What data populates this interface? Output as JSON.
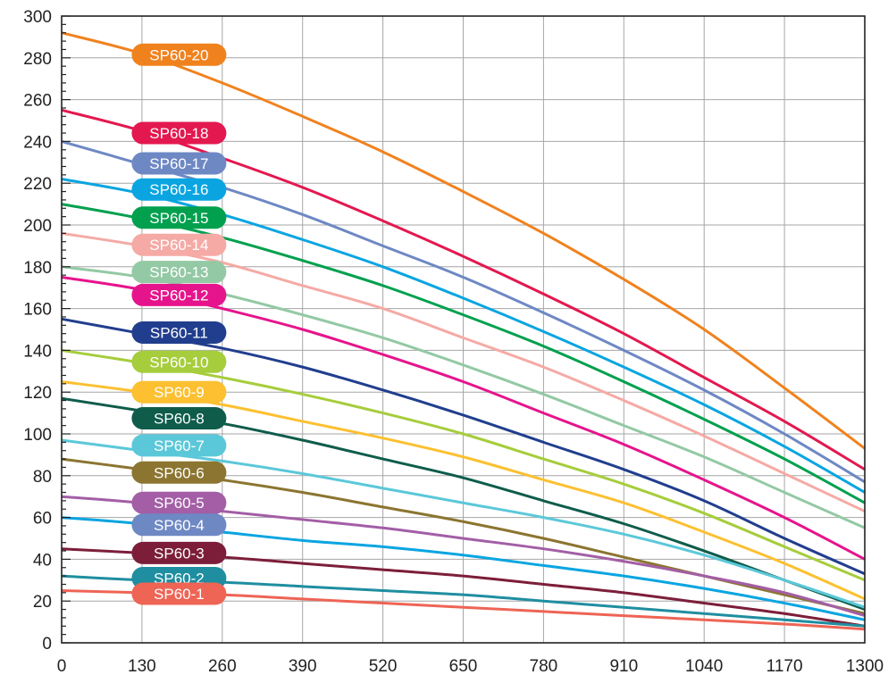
{
  "chart_data": {
    "type": "line",
    "title": "",
    "xlabel": "",
    "ylabel": "",
    "xlim": [
      0,
      1300
    ],
    "ylim": [
      0,
      300
    ],
    "grid": true,
    "x_ticks": [
      0,
      130,
      260,
      390,
      520,
      650,
      780,
      910,
      1040,
      1170,
      1300
    ],
    "y_ticks": [
      0,
      20,
      40,
      60,
      80,
      100,
      120,
      140,
      160,
      180,
      200,
      220,
      240,
      260,
      280,
      300
    ],
    "series": [
      {
        "name": "SP60-20",
        "color": "#f0821e",
        "x": [
          0,
          130,
          260,
          390,
          520,
          650,
          780,
          910,
          1040,
          1170,
          1300
        ],
        "y": [
          292,
          282,
          268,
          252,
          235,
          216,
          196,
          174,
          150,
          122,
          93
        ]
      },
      {
        "name": "SP60-18",
        "color": "#e3184f",
        "x": [
          0,
          130,
          260,
          390,
          520,
          650,
          780,
          910,
          1040,
          1170,
          1300
        ],
        "y": [
          255,
          245,
          232,
          218,
          202,
          185,
          167,
          148,
          127,
          106,
          83
        ]
      },
      {
        "name": "SP60-17",
        "color": "#6e88c4",
        "x": [
          0,
          130,
          260,
          390,
          520,
          650,
          780,
          910,
          1040,
          1170,
          1300
        ],
        "y": [
          240,
          229,
          218,
          205,
          190,
          175,
          158,
          140,
          121,
          100,
          77
        ]
      },
      {
        "name": "SP60-16",
        "color": "#0aa5e1",
        "x": [
          0,
          130,
          260,
          390,
          520,
          650,
          780,
          910,
          1040,
          1170,
          1300
        ],
        "y": [
          222,
          215,
          205,
          193,
          180,
          165,
          149,
          132,
          114,
          94,
          72
        ]
      },
      {
        "name": "SP60-15",
        "color": "#00a04e",
        "x": [
          0,
          130,
          260,
          390,
          520,
          650,
          780,
          910,
          1040,
          1170,
          1300
        ],
        "y": [
          210,
          203,
          194,
          183,
          171,
          157,
          142,
          125,
          107,
          88,
          67
        ]
      },
      {
        "name": "SP60-14",
        "color": "#f5aaa5",
        "x": [
          0,
          130,
          260,
          390,
          520,
          650,
          780,
          910,
          1040,
          1170,
          1300
        ],
        "y": [
          196,
          190,
          182,
          171,
          160,
          146,
          132,
          116,
          99,
          81,
          63
        ]
      },
      {
        "name": "SP60-13",
        "color": "#93c9a4",
        "x": [
          0,
          130,
          260,
          390,
          520,
          650,
          780,
          910,
          1040,
          1170,
          1300
        ],
        "y": [
          180,
          175,
          167,
          157,
          146,
          133,
          119,
          104,
          89,
          72,
          55
        ]
      },
      {
        "name": "SP60-12",
        "color": "#e6148c",
        "x": [
          0,
          130,
          260,
          390,
          520,
          650,
          780,
          910,
          1040,
          1170,
          1300
        ],
        "y": [
          175,
          169,
          160,
          150,
          138,
          125,
          110,
          95,
          78,
          60,
          40
        ]
      },
      {
        "name": "SP60-11",
        "color": "#213e8e",
        "x": [
          0,
          130,
          260,
          390,
          520,
          650,
          780,
          910,
          1040,
          1170,
          1300
        ],
        "y": [
          155,
          148,
          141,
          132,
          121,
          109,
          96,
          83,
          68,
          50,
          33
        ]
      },
      {
        "name": "SP60-10",
        "color": "#a6cd3c",
        "x": [
          0,
          130,
          260,
          390,
          520,
          650,
          780,
          910,
          1040,
          1170,
          1300
        ],
        "y": [
          140,
          134,
          127,
          119,
          110,
          100,
          88,
          76,
          62,
          46,
          30
        ]
      },
      {
        "name": "SP60-9",
        "color": "#fcc030",
        "x": [
          0,
          130,
          260,
          390,
          520,
          650,
          780,
          910,
          1040,
          1170,
          1300
        ],
        "y": [
          125,
          120,
          114,
          106,
          98,
          89,
          78,
          67,
          53,
          38,
          21
        ]
      },
      {
        "name": "SP60-8",
        "color": "#0f5c4b",
        "x": [
          0,
          130,
          260,
          390,
          520,
          650,
          780,
          910,
          1040,
          1170,
          1300
        ],
        "y": [
          117,
          111,
          105,
          97,
          88,
          79,
          68,
          57,
          44,
          30,
          16
        ]
      },
      {
        "name": "SP60-7",
        "color": "#5bc8d9",
        "x": [
          0,
          130,
          260,
          390,
          520,
          650,
          780,
          910,
          1040,
          1170,
          1300
        ],
        "y": [
          97,
          92,
          87,
          81,
          74,
          67,
          60,
          52,
          42,
          30,
          17
        ]
      },
      {
        "name": "SP60-6",
        "color": "#8b7530",
        "x": [
          0,
          130,
          260,
          390,
          520,
          650,
          780,
          910,
          1040,
          1170,
          1300
        ],
        "y": [
          88,
          83,
          78,
          72,
          65,
          58,
          50,
          41,
          32,
          23,
          14
        ]
      },
      {
        "name": "SP60-5",
        "color": "#a35ea6",
        "x": [
          0,
          130,
          260,
          390,
          520,
          650,
          780,
          910,
          1040,
          1170,
          1300
        ],
        "y": [
          70,
          67,
          63,
          59,
          55,
          50,
          45,
          39,
          32,
          24,
          13
        ]
      },
      {
        "name": "SP60-4",
        "color": "#0aa5e1",
        "x": [
          0,
          130,
          260,
          390,
          520,
          650,
          780,
          910,
          1040,
          1170,
          1300
        ],
        "y": [
          60,
          57,
          53,
          49,
          46,
          42,
          37,
          32,
          26,
          19,
          11
        ]
      },
      {
        "name": "SP60-3",
        "color": "#7c1e3a",
        "x": [
          0,
          130,
          260,
          390,
          520,
          650,
          780,
          910,
          1040,
          1170,
          1300
        ],
        "y": [
          45,
          43,
          41,
          38,
          35,
          32,
          28,
          24,
          19,
          14,
          8
        ]
      },
      {
        "name": "SP60-2",
        "color": "#1f8ea0",
        "x": [
          0,
          130,
          260,
          390,
          520,
          650,
          780,
          910,
          1040,
          1170,
          1300
        ],
        "y": [
          32,
          30,
          29,
          27,
          25,
          23,
          20,
          17,
          14,
          11,
          8
        ]
      },
      {
        "name": "SP60-1",
        "color": "#ee6455",
        "x": [
          0,
          130,
          260,
          390,
          520,
          650,
          780,
          910,
          1040,
          1170,
          1300
        ],
        "y": [
          25,
          24,
          23,
          21,
          19,
          17,
          15,
          13,
          11,
          9,
          6.5
        ]
      }
    ],
    "annotations": [
      {
        "text": "SP60-20",
        "series": "SP60-20",
        "color": "#f0821e",
        "x": 190,
        "y": 281.5
      },
      {
        "text": "SP60-18",
        "series": "SP60-18",
        "color": "#e3184f",
        "x": 190,
        "y": 244
      },
      {
        "text": "SP60-17",
        "series": "SP60-17",
        "color": "#6e88c4",
        "x": 190,
        "y": 229.5
      },
      {
        "text": "SP60-16",
        "series": "SP60-16",
        "color": "#0aa5e1",
        "x": 190,
        "y": 217
      },
      {
        "text": "SP60-15",
        "series": "SP60-15",
        "color": "#00a04e",
        "x": 190,
        "y": 203.5
      },
      {
        "text": "SP60-14",
        "series": "SP60-14",
        "color": "#f5aaa5",
        "x": 190,
        "y": 190.5
      },
      {
        "text": "SP60-13",
        "series": "SP60-13",
        "color": "#93c9a4",
        "x": 190,
        "y": 177.5
      },
      {
        "text": "SP60-12",
        "series": "SP60-12",
        "color": "#e6148c",
        "x": 190,
        "y": 166.5
      },
      {
        "text": "SP60-11",
        "series": "SP60-11",
        "color": "#213e8e",
        "x": 190,
        "y": 148.5
      },
      {
        "text": "SP60-10",
        "series": "SP60-10",
        "color": "#a6cd3c",
        "x": 190,
        "y": 134.5
      },
      {
        "text": "SP60-9",
        "series": "SP60-9",
        "color": "#fcc030",
        "x": 190,
        "y": 120
      },
      {
        "text": "SP60-8",
        "series": "SP60-8",
        "color": "#0f5c4b",
        "x": 190,
        "y": 107.5
      },
      {
        "text": "SP60-7",
        "series": "SP60-7",
        "color": "#5bc8d9",
        "x": 190,
        "y": 94.5
      },
      {
        "text": "SP60-6",
        "series": "SP60-6",
        "color": "#8b7530",
        "x": 190,
        "y": 81.5
      },
      {
        "text": "SP60-5",
        "series": "SP60-5",
        "color": "#a35ea6",
        "x": 190,
        "y": 67
      },
      {
        "text": "SP60-4",
        "series": "SP60-4",
        "color": "#6e88c4",
        "x": 190,
        "y": 56.5
      },
      {
        "text": "SP60-3",
        "series": "SP60-3",
        "color": "#7c1e3a",
        "x": 190,
        "y": 43
      },
      {
        "text": "SP60-2",
        "series": "SP60-2",
        "color": "#1f8ea0",
        "x": 190,
        "y": 31
      },
      {
        "text": "SP60-1",
        "series": "SP60-1",
        "color": "#ee6455",
        "x": 190,
        "y": 23.5
      }
    ]
  }
}
